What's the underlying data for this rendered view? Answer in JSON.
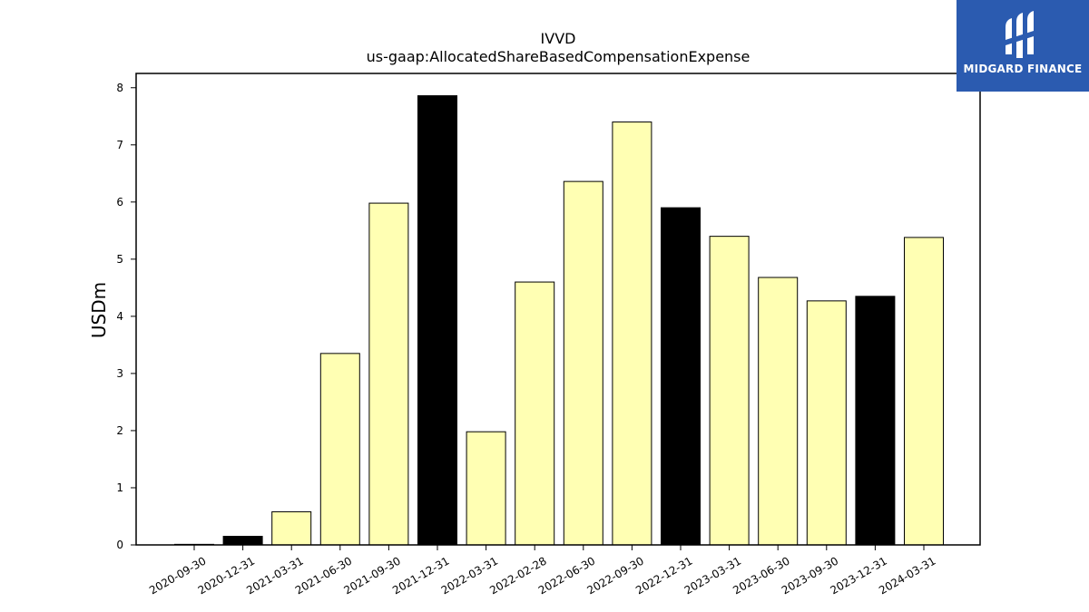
{
  "chart_data": {
    "type": "bar",
    "title": "IVVD",
    "subtitle": "us-gaap:AllocatedShareBasedCompensationExpense",
    "xlabel": "",
    "ylabel": "USDm",
    "ylim": [
      0,
      8.25
    ],
    "yticks": [
      0,
      1,
      2,
      3,
      4,
      5,
      6,
      7,
      8
    ],
    "grid": false,
    "categories": [
      "2020-09-30",
      "2020-12-31",
      "2021-03-31",
      "2021-06-30",
      "2021-09-30",
      "2021-12-31",
      "2022-03-31",
      "2022-02-28",
      "2022-06-30",
      "2022-09-30",
      "2022-12-31",
      "2023-03-31",
      "2023-06-30",
      "2023-09-30",
      "2023-12-31",
      "2024-03-31"
    ],
    "values": [
      0.01,
      0.15,
      0.58,
      3.35,
      5.98,
      7.86,
      1.98,
      4.6,
      6.36,
      7.4,
      5.9,
      5.4,
      4.68,
      4.27,
      4.35,
      5.38
    ],
    "bar_colors": [
      "#000000",
      "#000000",
      "#ffffb3",
      "#ffffb3",
      "#ffffb3",
      "#000000",
      "#ffffb3",
      "#ffffb3",
      "#ffffb3",
      "#ffffb3",
      "#000000",
      "#ffffb3",
      "#ffffb3",
      "#ffffb3",
      "#000000",
      "#ffffb3"
    ]
  },
  "logo": {
    "text": "MIDGARD FINANCE",
    "background": "#2b5bb0"
  }
}
